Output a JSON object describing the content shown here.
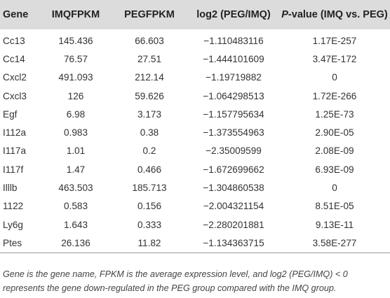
{
  "table": {
    "headers": {
      "gene": "Gene",
      "imq": "IMQFPKM",
      "peg": "PEGFPKM",
      "log2": "log2 (PEG/IMQ)",
      "pvalue_italic": "P",
      "pvalue_rest": "-value (IMQ vs. PEG)"
    },
    "rows": [
      {
        "gene": "Cc13",
        "imq": "145.436",
        "peg": "66.603",
        "log2": "−1.110483116",
        "p": "1.17E-257"
      },
      {
        "gene": "Cc14",
        "imq": "76.57",
        "peg": "27.51",
        "log2": "−1.444101609",
        "p": "3.47E-172"
      },
      {
        "gene": "Cxcl2",
        "imq": "491.093",
        "peg": "212.14",
        "log2": "−1.19719882",
        "p": "0"
      },
      {
        "gene": "Cxcl3",
        "imq": "126",
        "peg": "59.626",
        "log2": "−1.064298513",
        "p": "1.72E-266"
      },
      {
        "gene": "Egf",
        "imq": "6.98",
        "peg": "3.173",
        "log2": "−1.157795634",
        "p": "1.25E-73"
      },
      {
        "gene": "I112a",
        "imq": "0.983",
        "peg": "0.38",
        "log2": "−1.373554963",
        "p": "2.90E-05"
      },
      {
        "gene": "I117a",
        "imq": "1.01",
        "peg": "0.2",
        "log2": "−2.35009599",
        "p": "2.08E-09"
      },
      {
        "gene": "I117f",
        "imq": "1.47",
        "peg": "0.466",
        "log2": "−1.672699662",
        "p": "6.93E-09"
      },
      {
        "gene": "Illlb",
        "imq": "463.503",
        "peg": "185.713",
        "log2": "−1.304860538",
        "p": "0"
      },
      {
        "gene": "1122",
        "imq": "0.583",
        "peg": "0.156",
        "log2": "−2.004321154",
        "p": "8.51E-05"
      },
      {
        "gene": "Ly6g",
        "imq": "1.643",
        "peg": "0.333",
        "log2": "−2.280201881",
        "p": "9.13E-11"
      },
      {
        "gene": "Ptes",
        "imq": "26.136",
        "peg": "11.82",
        "log2": "−1.134363715",
        "p": "3.58E-277"
      }
    ]
  },
  "caption": "Gene is the gene name, FPKM is the average expression level, and log2 (PEG/IMQ) < 0 represents the gene down-regulated in the PEG group compared with the IMQ group."
}
